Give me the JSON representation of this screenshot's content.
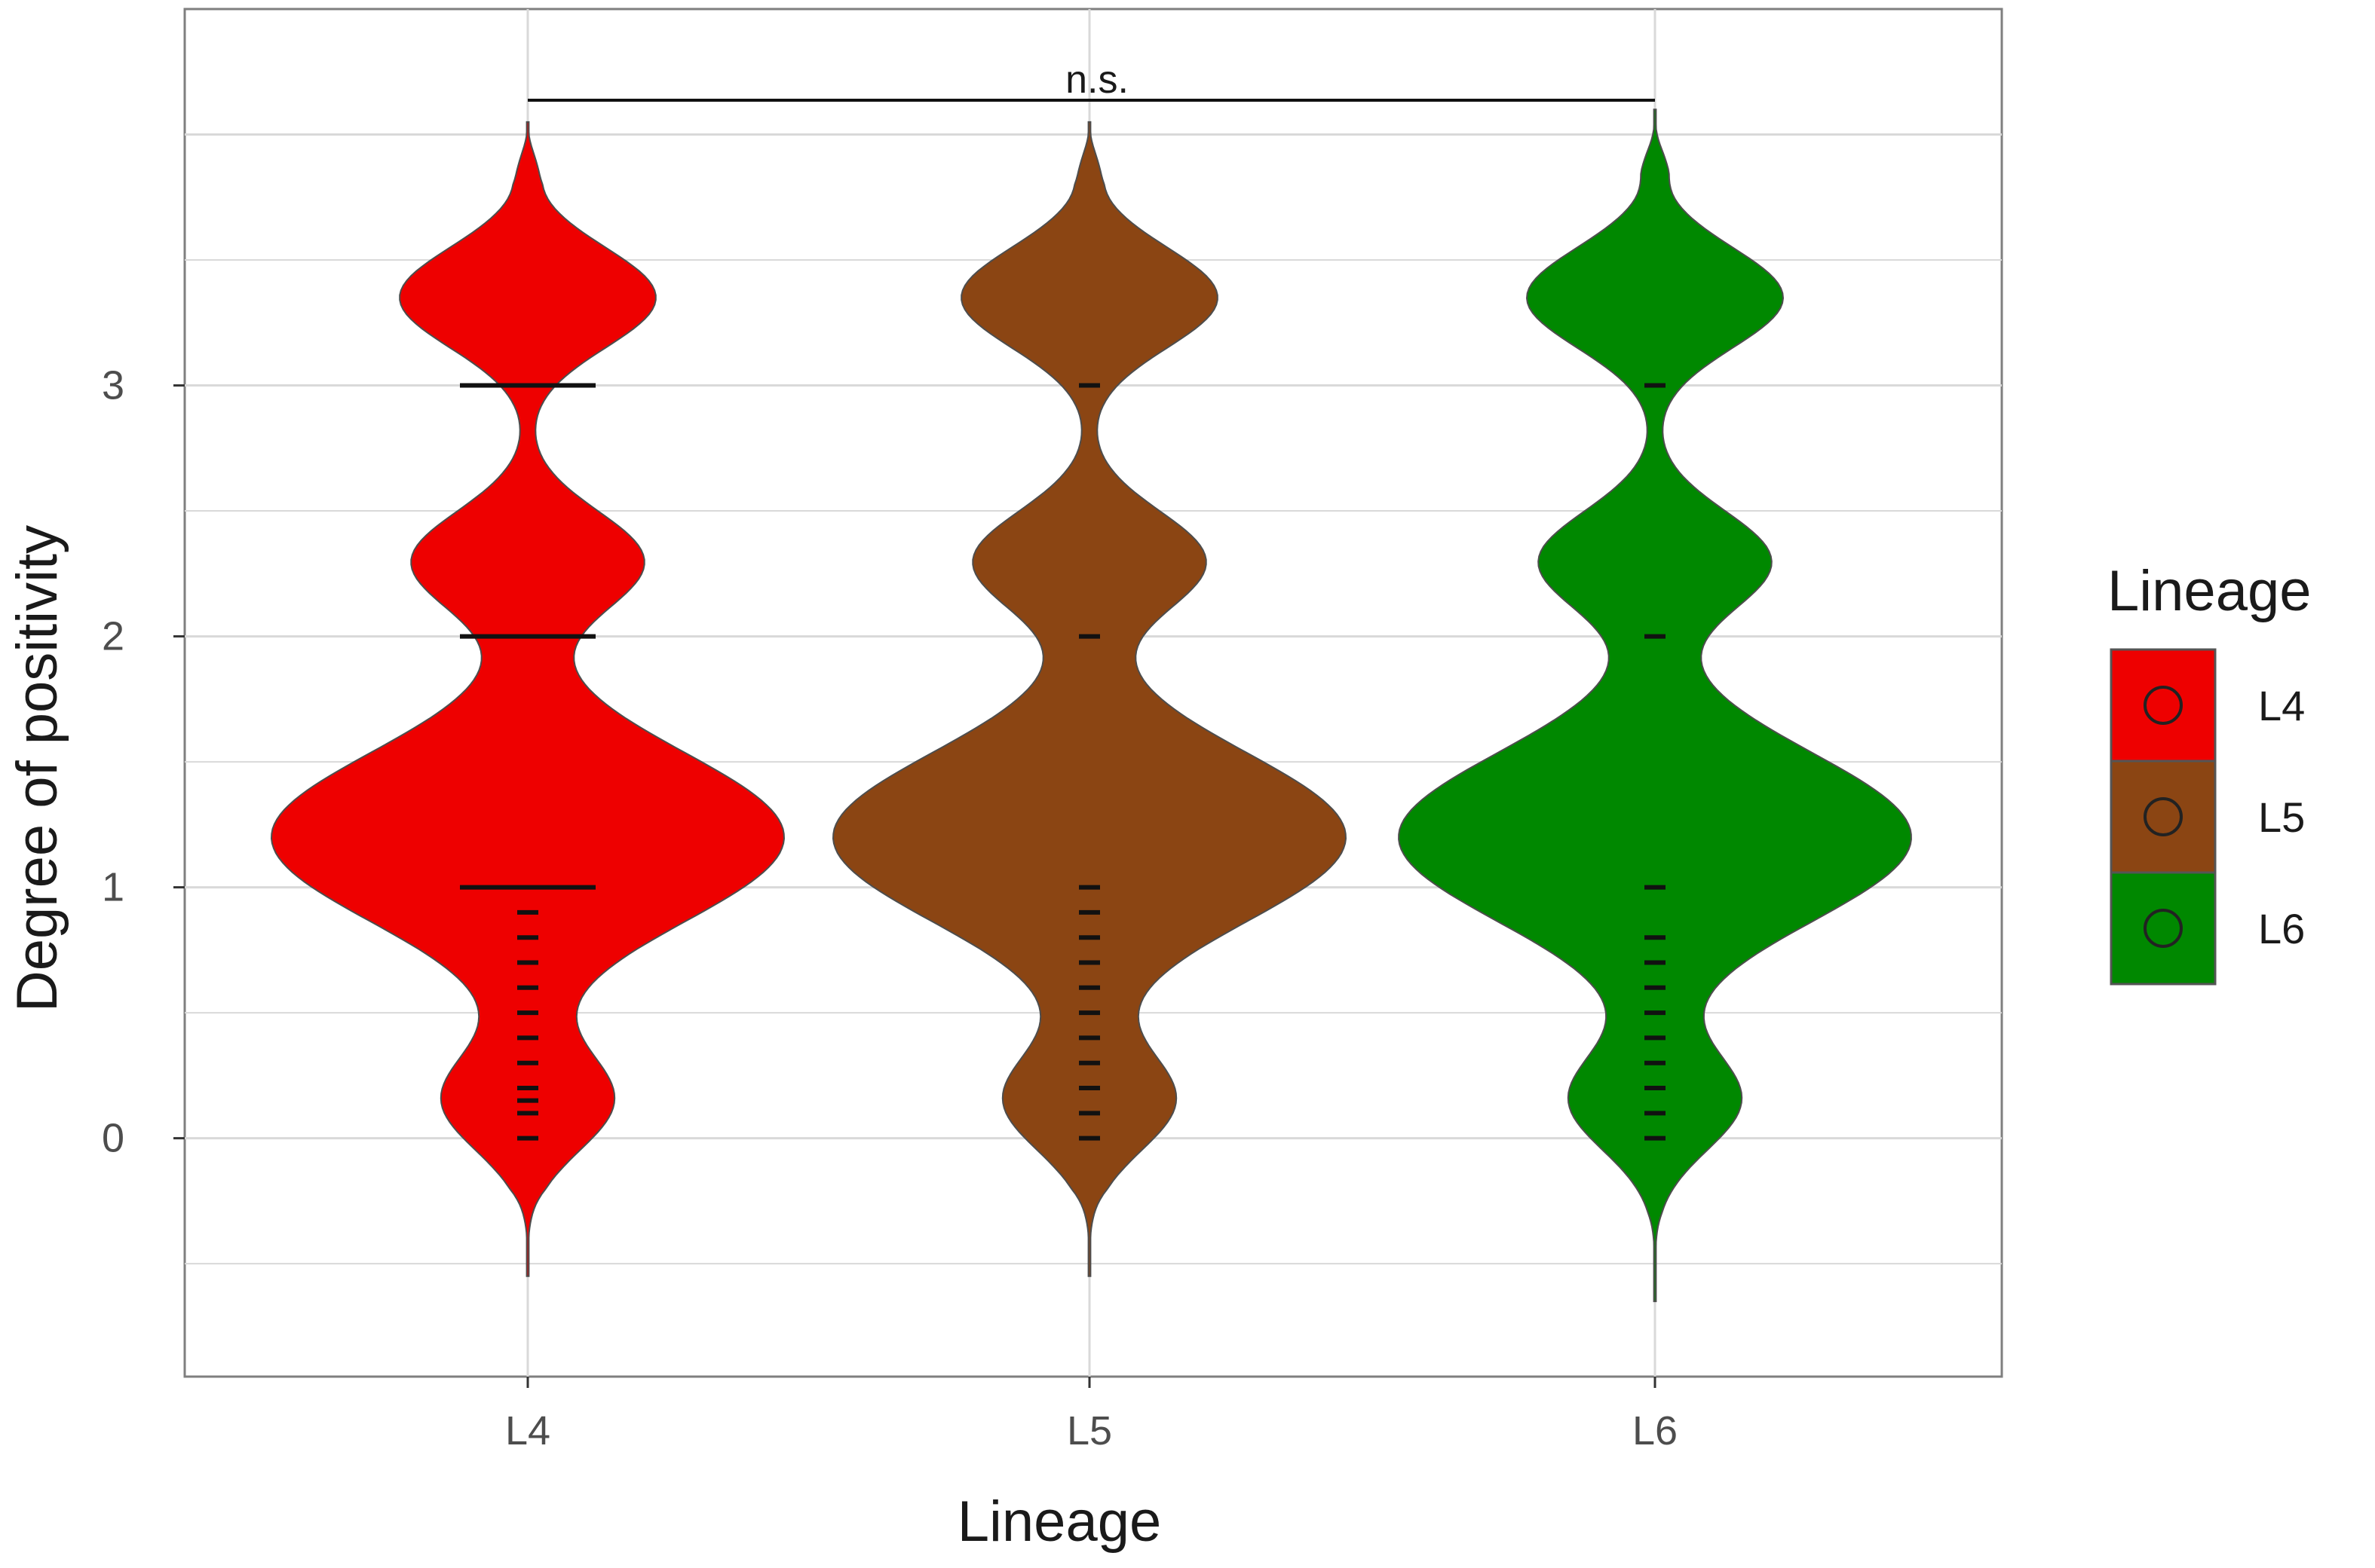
{
  "chart_data": {
    "type": "violin",
    "title": "",
    "xlabel": "Lineage",
    "ylabel": "Degree of positivity",
    "categories": [
      "L4",
      "L5",
      "L6"
    ],
    "ylim": [
      -0.95,
      4.5
    ],
    "y_ticks": [
      0,
      1,
      2,
      3
    ],
    "grid": true,
    "series": [
      {
        "name": "L4",
        "color": "#ee0000",
        "modes": [
          1.2,
          2.3,
          3.35
        ],
        "range": [
          -0.55,
          4.05
        ],
        "points": [
          0,
          0.1,
          0.15,
          0.2,
          0.3,
          0.4,
          0.5,
          0.6,
          0.7,
          0.8,
          0.9,
          1,
          2,
          3
        ]
      },
      {
        "name": "L5",
        "color": "#8b4513",
        "modes": [
          1.2,
          2.3,
          3.35
        ],
        "range": [
          -0.55,
          4.05
        ],
        "points": [
          0,
          0.1,
          0.2,
          0.3,
          0.4,
          0.5,
          0.6,
          0.7,
          0.8,
          0.9,
          1,
          2,
          3
        ]
      },
      {
        "name": "L6",
        "color": "#008800",
        "modes": [
          1.2,
          2.3,
          3.35
        ],
        "range": [
          -0.65,
          4.1
        ],
        "points": [
          0,
          0.1,
          0.2,
          0.3,
          0.4,
          0.5,
          0.6,
          0.7,
          0.8,
          1,
          2,
          3
        ]
      }
    ],
    "significance": {
      "from": "L4",
      "to": "L6",
      "label": "n.s."
    },
    "legend": {
      "title": "Lineage",
      "position": "right",
      "items": [
        "L4",
        "L5",
        "L6"
      ]
    }
  }
}
